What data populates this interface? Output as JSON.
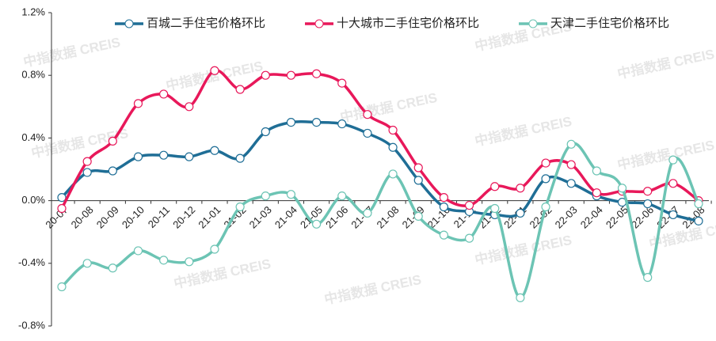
{
  "chart_data": {
    "type": "line",
    "categories": [
      "20-07",
      "20-08",
      "20-09",
      "20-10",
      "20-11",
      "20-12",
      "21-01",
      "21-02",
      "21-03",
      "21-04",
      "21-05",
      "21-06",
      "21-07",
      "21-08",
      "21-09",
      "21-10",
      "21-11",
      "21-12",
      "22-01",
      "22-02",
      "22-03",
      "22-04",
      "22-05",
      "22-06",
      "22-07",
      "22-08"
    ],
    "series": [
      {
        "name": "百城二手住宅价格环比",
        "color": "#1f6e96",
        "values": [
          0.02,
          0.18,
          0.19,
          0.28,
          0.29,
          0.28,
          0.32,
          0.27,
          0.44,
          0.5,
          0.5,
          0.49,
          0.43,
          0.34,
          0.13,
          -0.04,
          -0.07,
          -0.09,
          -0.08,
          0.14,
          0.11,
          0.03,
          -0.01,
          -0.02,
          -0.09,
          -0.13
        ]
      },
      {
        "name": "十大城市二手住宅价格环比",
        "color": "#e8185a",
        "values": [
          -0.05,
          0.25,
          0.38,
          0.62,
          0.68,
          0.6,
          0.83,
          0.71,
          0.8,
          0.8,
          0.81,
          0.75,
          0.55,
          0.45,
          0.21,
          0.02,
          -0.03,
          0.09,
          0.08,
          0.24,
          0.23,
          0.05,
          0.06,
          0.06,
          0.11,
          0.0
        ]
      },
      {
        "name": "天津二手住宅价格环比",
        "color": "#6cc4b4",
        "values": [
          -0.55,
          -0.4,
          -0.43,
          -0.32,
          -0.38,
          -0.39,
          -0.31,
          -0.04,
          0.03,
          0.04,
          -0.15,
          0.03,
          -0.08,
          0.17,
          -0.1,
          -0.22,
          -0.24,
          -0.05,
          -0.62,
          -0.04,
          0.36,
          0.19,
          0.08,
          -0.49,
          0.26,
          -0.02
        ]
      }
    ],
    "ylim": [
      -0.8,
      1.2
    ],
    "yticks": [
      {
        "value": 1.2,
        "label": "1.2%"
      },
      {
        "value": 0.8,
        "label": "0.8%"
      },
      {
        "value": 0.4,
        "label": "0.4%"
      },
      {
        "value": 0,
        "label": "0.0%"
      },
      {
        "value": -0.4,
        "label": "-0.4%"
      },
      {
        "value": -0.8,
        "label": "-0.8%"
      }
    ],
    "grid": false,
    "legend": "top",
    "watermark": "中指数据 CREIS"
  }
}
